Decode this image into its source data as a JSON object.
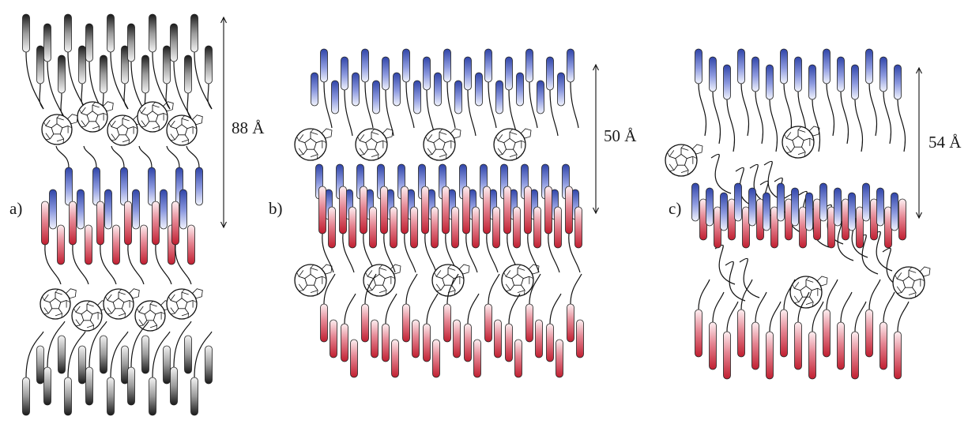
{
  "panels": [
    {
      "id": "a",
      "label": "a)",
      "dimension": "88 Å",
      "top_tail_color": "black",
      "layers": [
        "black-tails",
        "fullerene-row",
        "blue-tails",
        "red-tails",
        "fullerene-row",
        "black-tails"
      ]
    },
    {
      "id": "b",
      "label": "b)",
      "dimension": "50 Å",
      "top_tail_color": "blue",
      "layers": [
        "blue-tails",
        "fullerene-row",
        "blue-tails",
        "red-tails",
        "fullerene-row",
        "red-tails"
      ]
    },
    {
      "id": "c",
      "label": "c)",
      "dimension": "54 Å",
      "top_tail_color": "blue",
      "layers": [
        "blue-tails",
        "fullerene",
        "mixed-blue-red-core",
        "fullerene",
        "red-tails"
      ]
    }
  ],
  "colors": {
    "black_tail": "#2a2a2a",
    "blue_tail": "#3a4fb0",
    "red_tail": "#c8283a",
    "line": "#111111"
  }
}
